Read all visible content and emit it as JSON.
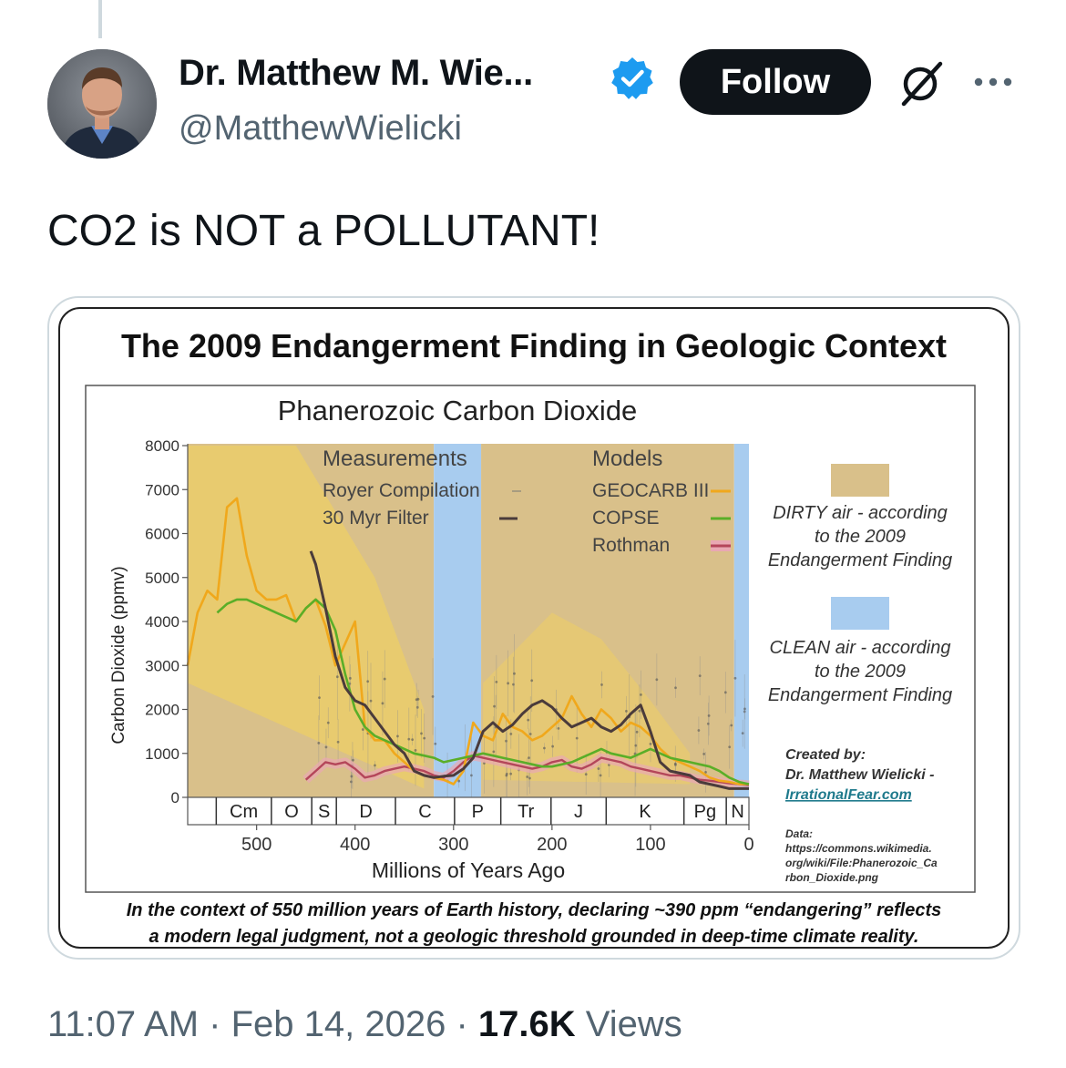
{
  "author": {
    "name": "Dr. Matthew M. Wie...",
    "handle": "@MatthewWielicki"
  },
  "actions": {
    "follow_label": "Follow"
  },
  "icons": {
    "verified": "verified-badge-icon",
    "grok": "grok-icon",
    "more": "more-icon"
  },
  "colors": {
    "verified": "#1d9bf0",
    "dirty": "#d9c08a",
    "clean": "#a8ccef",
    "geocarb": "#f0a81c",
    "copse": "#5aae28",
    "rothman": "#b4465a",
    "filter": "#4a3b3b"
  },
  "tweet": {
    "text": "CO2 is NOT a POLLUTANT!"
  },
  "infographic": {
    "title": "The 2009 Endangerment Finding in Geologic Context",
    "caption_line1": "In the context of 550 million years of Earth history, declaring ~390 ppm “endangering” reflects",
    "caption_line2": "a modern legal judgment, not a geologic threshold grounded in deep-time climate reality.",
    "legend": {
      "dirty_line1": "DIRTY air - according",
      "dirty_line2": "to the 2009",
      "dirty_line3": "Endangerment Finding",
      "clean_line1": "CLEAN air - according",
      "clean_line2": "to the 2009",
      "clean_line3": "Endangerment Finding"
    },
    "credit": {
      "created_by": "Created by:",
      "author": "Dr. Matthew Wielicki -",
      "site": "IrrationalFear.com",
      "data_label": "Data:",
      "data_line1": "https://commons.wikimedia.",
      "data_line2": "org/wiki/File:Phanerozoic_Ca",
      "data_line3": "rbon_Dioxide.png"
    }
  },
  "chart_data": {
    "type": "line",
    "title": "Phanerozoic Carbon Dioxide",
    "xlabel": "Millions of Years Ago",
    "ylabel": "Carbon Dioxide (ppmv)",
    "xlim": [
      570,
      0
    ],
    "ylim": [
      0,
      8000
    ],
    "x_ticks": [
      500,
      400,
      300,
      200,
      100,
      0
    ],
    "y_ticks": [
      0,
      1000,
      2000,
      3000,
      4000,
      5000,
      6000,
      7000,
      8000
    ],
    "periods": [
      {
        "label": "Cm",
        "start": 541,
        "end": 485
      },
      {
        "label": "O",
        "start": 485,
        "end": 444
      },
      {
        "label": "S",
        "start": 444,
        "end": 419
      },
      {
        "label": "D",
        "start": 419,
        "end": 359
      },
      {
        "label": "C",
        "start": 359,
        "end": 299
      },
      {
        "label": "P",
        "start": 299,
        "end": 252
      },
      {
        "label": "Tr",
        "start": 252,
        "end": 201
      },
      {
        "label": "J",
        "start": 201,
        "end": 145
      },
      {
        "label": "K",
        "start": 145,
        "end": 66
      },
      {
        "label": "Pg",
        "start": 66,
        "end": 23
      },
      {
        "label": "N",
        "start": 23,
        "end": 0
      }
    ],
    "shaded_regions": [
      {
        "name": "dirty",
        "start": 570,
        "end": 320
      },
      {
        "name": "clean",
        "start": 320,
        "end": 272
      },
      {
        "name": "dirty",
        "start": 272,
        "end": 15
      },
      {
        "name": "clean",
        "start": 15,
        "end": 0
      }
    ],
    "legend": {
      "measurements_title": "Measurements",
      "royer": "Royer Compilation",
      "filter": "30 Myr Filter",
      "models_title": "Models",
      "geocarb": "GEOCARB III",
      "copse": "COPSE",
      "rothman": "Rothman"
    },
    "series": [
      {
        "name": "GEOCARB III",
        "x": [
          570,
          560,
          550,
          540,
          530,
          520,
          510,
          500,
          490,
          480,
          470,
          460,
          450,
          440,
          430,
          420,
          410,
          400,
          390,
          380,
          370,
          360,
          350,
          340,
          330,
          320,
          310,
          300,
          290,
          280,
          270,
          260,
          250,
          240,
          230,
          220,
          210,
          200,
          190,
          180,
          170,
          160,
          150,
          140,
          130,
          120,
          110,
          100,
          90,
          80,
          70,
          60,
          50,
          40,
          30,
          20,
          10,
          0
        ],
        "y": [
          3000,
          4200,
          4700,
          4500,
          6600,
          6800,
          5500,
          4700,
          4500,
          4500,
          4600,
          4000,
          4300,
          4500,
          3900,
          3000,
          3500,
          4000,
          1600,
          1300,
          1300,
          1000,
          800,
          600,
          500,
          450,
          400,
          300,
          600,
          1700,
          1400,
          1300,
          1900,
          1600,
          1500,
          1300,
          1400,
          1600,
          1800,
          2300,
          1900,
          1600,
          2000,
          1800,
          1500,
          1700,
          1600,
          1400,
          1100,
          900,
          800,
          700,
          600,
          450,
          380,
          350,
          300,
          300
        ]
      },
      {
        "name": "30 Myr Filter",
        "x": [
          445,
          440,
          430,
          420,
          410,
          400,
          390,
          380,
          370,
          360,
          350,
          340,
          330,
          320,
          310,
          300,
          290,
          280,
          270,
          260,
          250,
          240,
          230,
          220,
          210,
          200,
          190,
          180,
          170,
          160,
          150,
          140,
          130,
          120,
          110,
          100,
          90,
          80,
          70,
          60,
          50,
          40,
          30,
          20,
          10,
          0
        ],
        "y": [
          5600,
          5300,
          4300,
          3200,
          2500,
          2200,
          2100,
          1800,
          1500,
          1200,
          1000,
          600,
          500,
          450,
          480,
          500,
          650,
          900,
          1500,
          1700,
          1500,
          1650,
          1900,
          2100,
          2200,
          2050,
          1800,
          1600,
          1700,
          1800,
          1600,
          1500,
          1650,
          1900,
          2100,
          1500,
          800,
          600,
          550,
          500,
          350,
          300,
          250,
          200,
          200,
          200
        ]
      },
      {
        "name": "COPSE",
        "x": [
          540,
          530,
          520,
          510,
          500,
          490,
          480,
          470,
          460,
          450,
          440,
          430,
          420,
          410,
          400,
          390,
          380,
          370,
          360,
          350,
          340,
          330,
          320,
          310,
          300,
          290,
          280,
          270,
          260,
          250,
          240,
          230,
          220,
          210,
          200,
          190,
          180,
          170,
          160,
          150,
          140,
          130,
          120,
          110,
          100,
          90,
          80,
          70,
          60,
          50,
          40,
          30,
          20,
          10,
          0
        ],
        "y": [
          4200,
          4400,
          4500,
          4500,
          4400,
          4300,
          4200,
          4100,
          4000,
          4300,
          4500,
          4300,
          3800,
          2800,
          2000,
          1600,
          1400,
          1300,
          1200,
          1100,
          1000,
          950,
          900,
          800,
          850,
          900,
          950,
          1000,
          950,
          900,
          850,
          800,
          750,
          700,
          700,
          750,
          800,
          900,
          1000,
          1100,
          1000,
          950,
          900,
          1000,
          1100,
          1000,
          900,
          850,
          800,
          750,
          700,
          600,
          450,
          350,
          300
        ]
      },
      {
        "name": "Rothman",
        "x": [
          450,
          440,
          430,
          420,
          410,
          400,
          390,
          380,
          370,
          360,
          350,
          340,
          330,
          320,
          310,
          300,
          290,
          280,
          270,
          260,
          250,
          240,
          230,
          220,
          210,
          200,
          190,
          180,
          170,
          160,
          150,
          140,
          130,
          120,
          110,
          100,
          90,
          80,
          70,
          60,
          50,
          40,
          30,
          20,
          10,
          0
        ],
        "y": [
          400,
          600,
          800,
          750,
          800,
          650,
          450,
          500,
          600,
          650,
          700,
          650,
          600,
          500,
          450,
          600,
          800,
          950,
          900,
          850,
          800,
          750,
          700,
          650,
          700,
          800,
          850,
          700,
          650,
          750,
          900,
          850,
          800,
          700,
          650,
          600,
          550,
          500,
          500,
          450,
          400,
          380,
          350,
          320,
          300,
          280
        ]
      }
    ]
  }
}
